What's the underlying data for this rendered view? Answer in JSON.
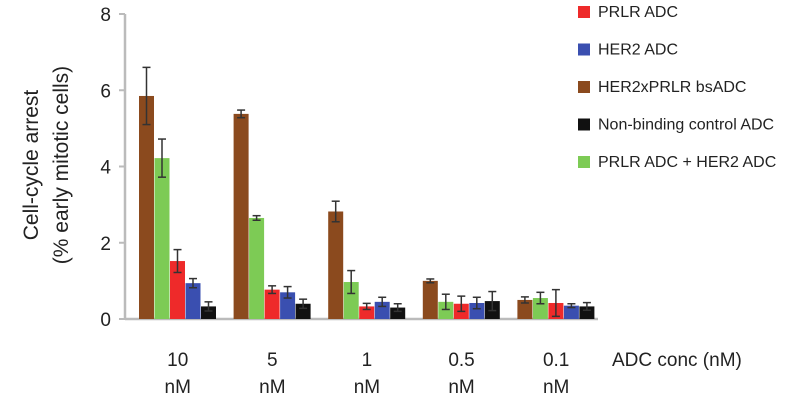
{
  "chart_data": {
    "type": "bar",
    "title": "",
    "ylabel_line1": "Cell-cycle arrest",
    "ylabel_line2": "(% early mitotic cells)",
    "xlabel": "ADC conc (nM)",
    "ylim": [
      0,
      8
    ],
    "yticks": [
      0,
      2,
      4,
      6,
      8
    ],
    "categories": [
      {
        "value": "10",
        "unit": "nM"
      },
      {
        "value": "5",
        "unit": "nM"
      },
      {
        "value": "1",
        "unit": "nM"
      },
      {
        "value": "0.5",
        "unit": "nM"
      },
      {
        "value": "0.1",
        "unit": "nM"
      }
    ],
    "legend_position": "right",
    "grid": false,
    "series": [
      {
        "name": "HER2xPRLR bsADC",
        "color": "#8B4A1E",
        "values": [
          5.85,
          5.38,
          2.82,
          1.0,
          0.5
        ],
        "errors": [
          0.75,
          0.1,
          0.27,
          0.05,
          0.08
        ]
      },
      {
        "name": "PRLR ADC + HER2 ADC",
        "color": "#7DCB55",
        "values": [
          4.22,
          2.65,
          0.97,
          0.45,
          0.55
        ],
        "errors": [
          0.5,
          0.06,
          0.3,
          0.2,
          0.15
        ]
      },
      {
        "name": "PRLR ADC",
        "color": "#EE2A2A",
        "values": [
          1.52,
          0.77,
          0.33,
          0.4,
          0.42
        ],
        "errors": [
          0.3,
          0.1,
          0.08,
          0.2,
          0.35
        ]
      },
      {
        "name": "HER2 ADC",
        "color": "#3A4FB0",
        "values": [
          0.94,
          0.7,
          0.45,
          0.42,
          0.35
        ],
        "errors": [
          0.12,
          0.15,
          0.12,
          0.15,
          0.05
        ]
      },
      {
        "name": "Non-binding control ADC",
        "color": "#111111",
        "values": [
          0.33,
          0.4,
          0.3,
          0.47,
          0.33
        ],
        "errors": [
          0.12,
          0.12,
          0.1,
          0.25,
          0.1
        ]
      }
    ],
    "legend_order": [
      "PRLR ADC",
      "HER2 ADC",
      "HER2xPRLR bsADC",
      "Non-binding control ADC",
      "PRLR ADC + HER2 ADC"
    ]
  }
}
